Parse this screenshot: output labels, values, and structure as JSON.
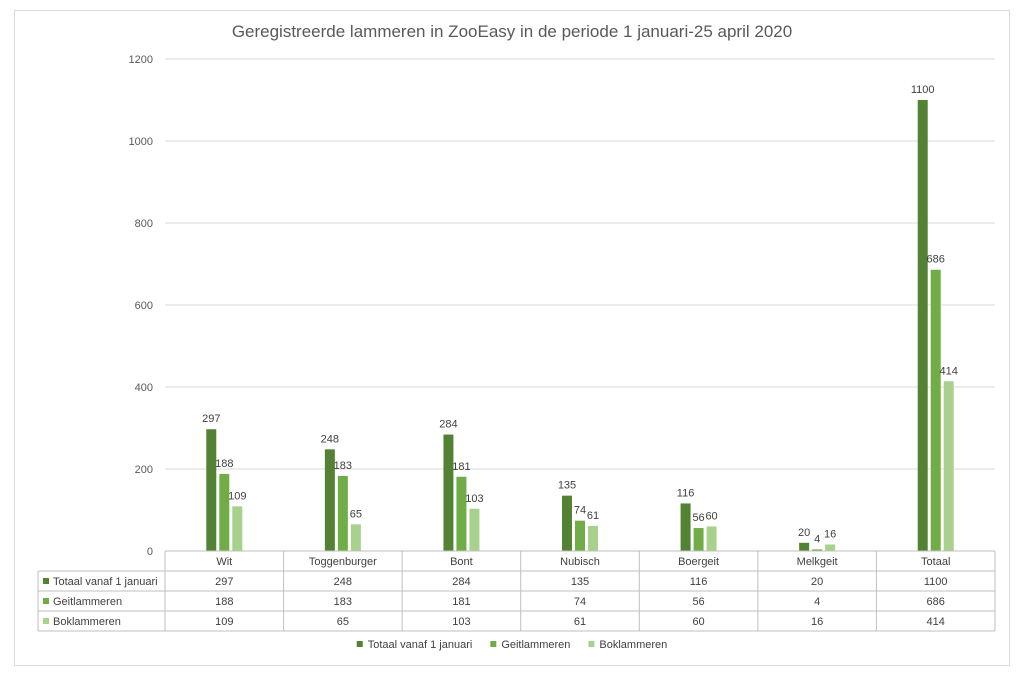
{
  "chart_data": {
    "type": "bar",
    "title": "Geregistreerde lammeren in ZooEasy in de periode 1 januari-25 april 2020",
    "categories": [
      "Wit",
      "Toggenburger",
      "Bont",
      "Nubisch",
      "Boergeit",
      "Melkgeit",
      "Totaal"
    ],
    "series": [
      {
        "name": "Totaal vanaf 1 januari",
        "color": "#548235",
        "values": [
          297,
          248,
          284,
          135,
          116,
          20,
          1100
        ]
      },
      {
        "name": "Geitlammeren",
        "color": "#70ad47",
        "values": [
          188,
          183,
          181,
          74,
          56,
          4,
          686
        ]
      },
      {
        "name": "Boklammeren",
        "color": "#a9d18e",
        "values": [
          109,
          65,
          103,
          61,
          60,
          16,
          414
        ]
      }
    ],
    "yticks": [
      0,
      200,
      400,
      600,
      800,
      1000,
      1200
    ],
    "ylim": [
      0,
      1200
    ],
    "grid": true,
    "legend": "bottom",
    "data_table": true
  }
}
